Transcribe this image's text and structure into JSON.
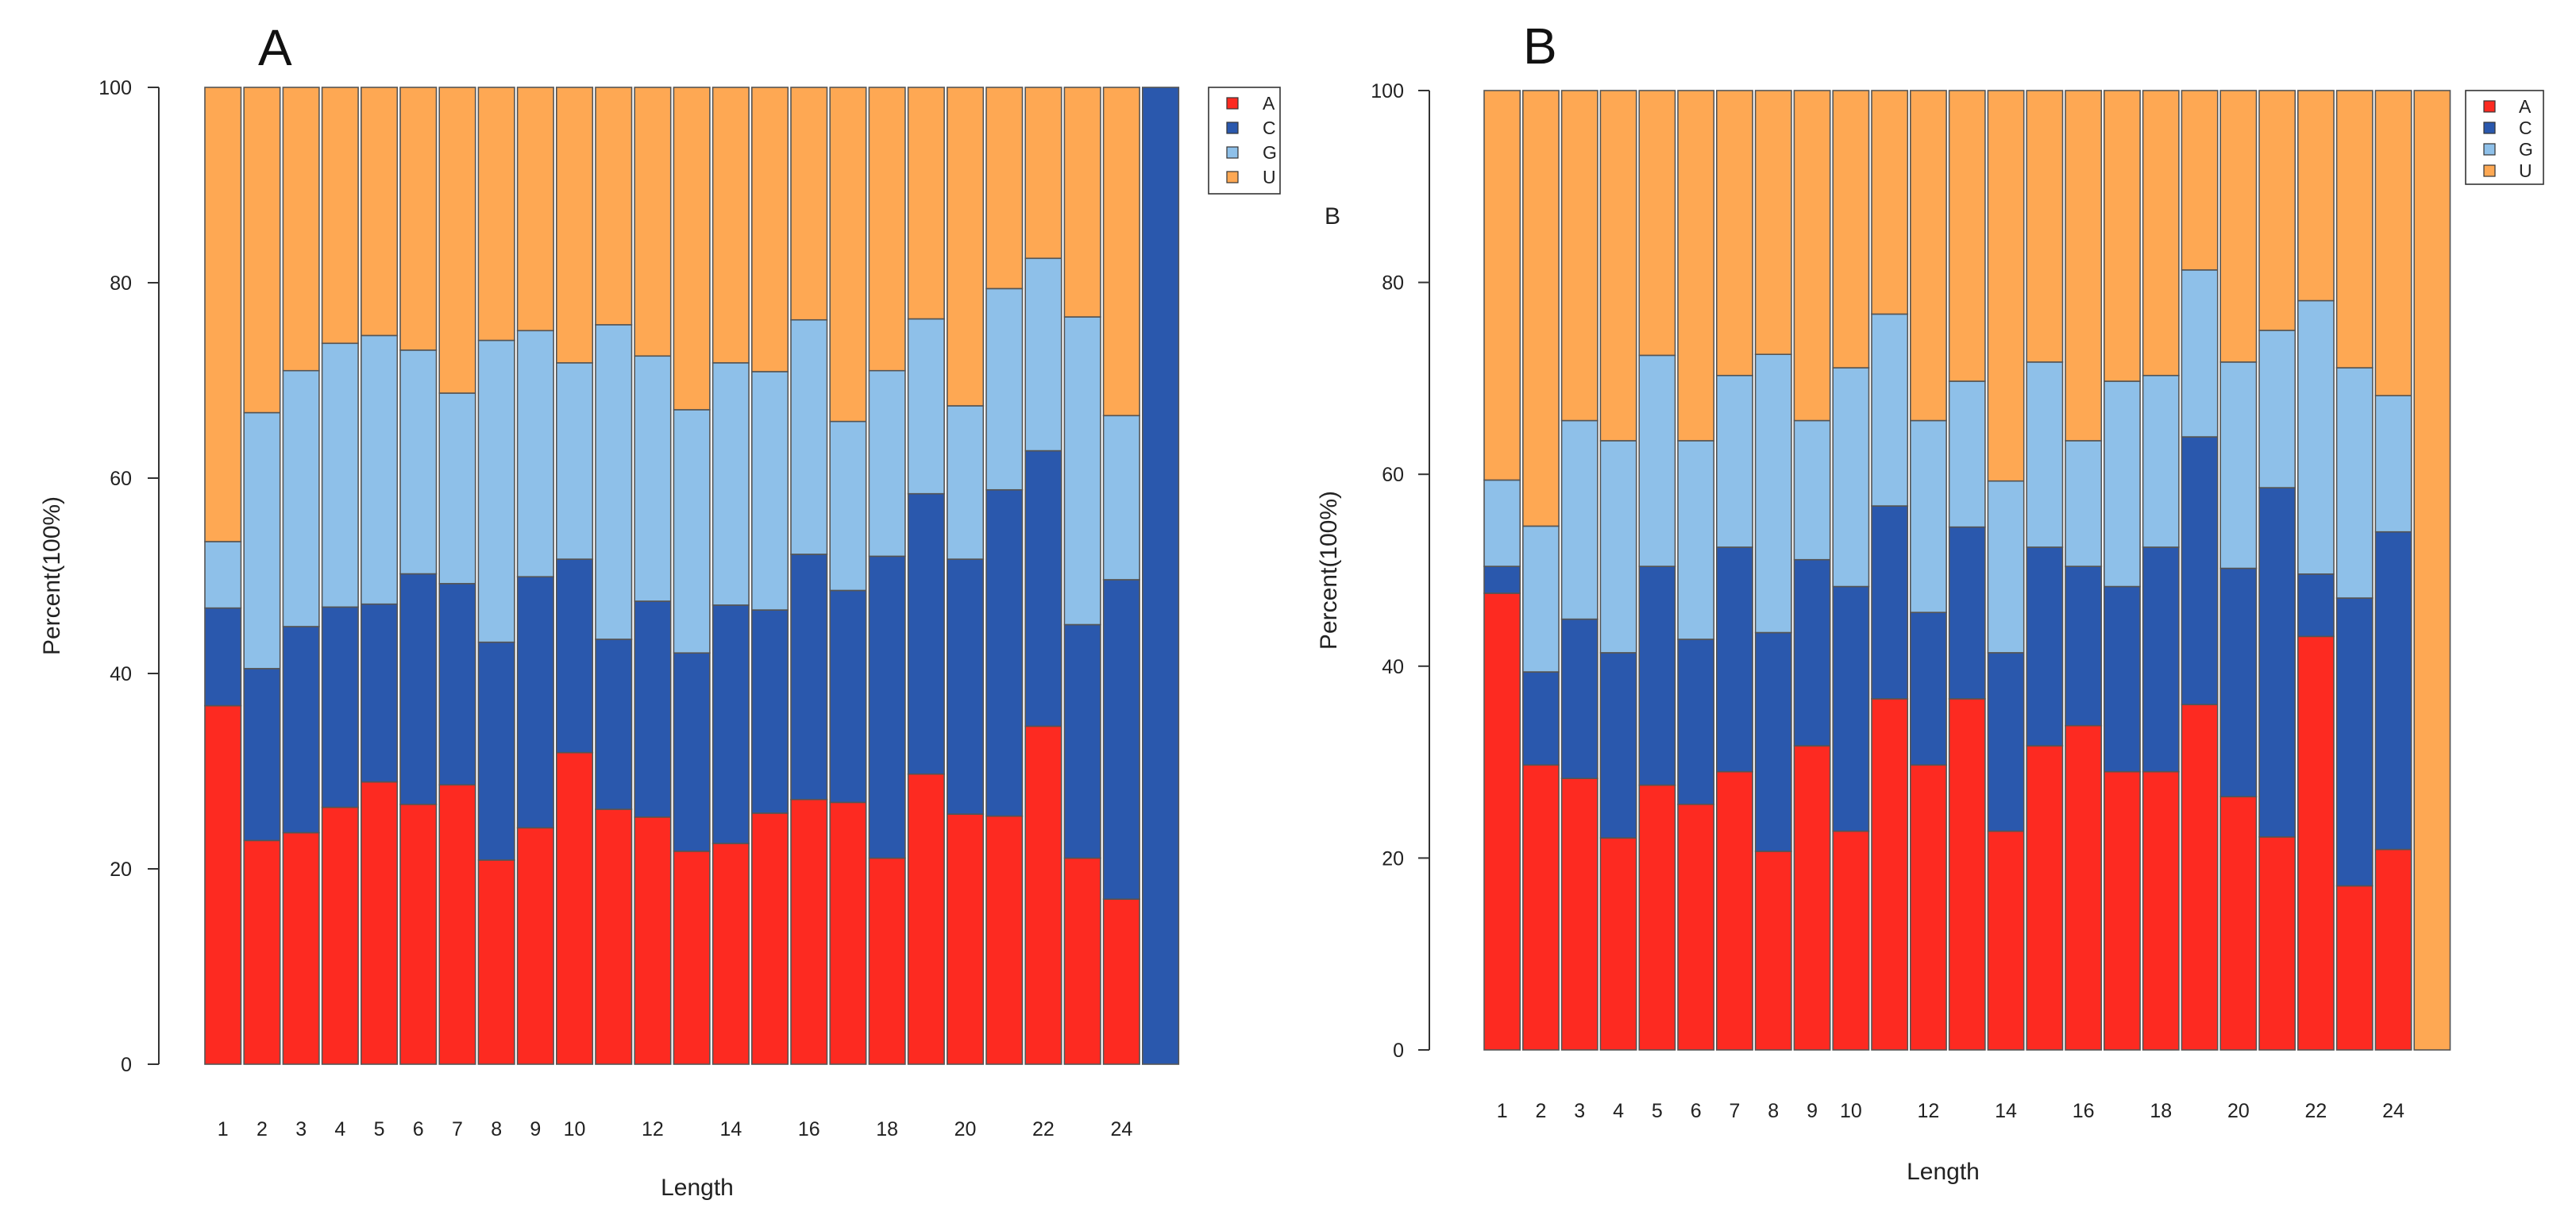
{
  "figure": {
    "stray_label": "B",
    "colors": {
      "A": "#fd2a21",
      "C": "#2a58ad",
      "G": "#8ec0e9",
      "U": "#fea853",
      "stroke": "#555555"
    }
  },
  "chart_data": [
    {
      "type": "bar",
      "stacked": true,
      "panel_label": "A",
      "xlabel": "Length",
      "ylabel": "Percent(100%)",
      "ylim": [
        0,
        100
      ],
      "yticks": [
        "0",
        "20",
        "40",
        "60",
        "80",
        "100"
      ],
      "categories": [
        "1",
        "2",
        "3",
        "4",
        "5",
        "6",
        "7",
        "8",
        "9",
        "10",
        "11",
        "12",
        "13",
        "14",
        "15",
        "16",
        "17",
        "18",
        "19",
        "20",
        "21",
        "22",
        "23",
        "24",
        "25"
      ],
      "xtick_labels": [
        "1",
        "2",
        "3",
        "4",
        "5",
        "6",
        "7",
        "8",
        "9",
        "10",
        "",
        "12",
        "",
        "14",
        "",
        "16",
        "",
        "18",
        "",
        "20",
        "",
        "22",
        "",
        "24",
        ""
      ],
      "legend": [
        "A",
        "C",
        "G",
        "U"
      ],
      "series": [
        {
          "name": "A",
          "values": [
            36.7,
            22.9,
            23.7,
            26.3,
            28.9,
            26.6,
            28.6,
            20.9,
            24.2,
            31.9,
            26.1,
            25.3,
            21.8,
            22.6,
            25.7,
            27.1,
            26.8,
            21.1,
            29.7,
            25.6,
            25.4,
            34.6,
            21.1,
            16.9,
            0
          ]
        },
        {
          "name": "C",
          "values": [
            10.0,
            17.6,
            21.1,
            20.5,
            18.2,
            23.6,
            20.6,
            22.3,
            25.7,
            19.8,
            17.4,
            22.1,
            20.3,
            24.4,
            20.8,
            25.1,
            21.7,
            30.9,
            28.7,
            26.1,
            33.4,
            28.2,
            23.9,
            32.7,
            100
          ]
        },
        {
          "name": "G",
          "values": [
            6.8,
            26.2,
            26.2,
            27.0,
            27.5,
            22.9,
            19.5,
            30.9,
            25.2,
            20.1,
            32.2,
            25.1,
            24.9,
            24.8,
            24.4,
            24.0,
            17.3,
            19.0,
            17.9,
            15.7,
            20.6,
            19.7,
            31.5,
            16.8,
            0
          ]
        },
        {
          "name": "U",
          "values": [
            46.5,
            33.3,
            29.0,
            26.2,
            25.4,
            26.9,
            31.3,
            25.9,
            24.9,
            28.2,
            24.3,
            27.5,
            33.0,
            28.2,
            29.1,
            23.8,
            34.2,
            29.0,
            23.7,
            32.6,
            20.6,
            17.5,
            23.5,
            33.6,
            0
          ]
        }
      ]
    },
    {
      "type": "bar",
      "stacked": true,
      "panel_label": "B",
      "xlabel": "Length",
      "ylabel": "Percent(100%)",
      "ylim": [
        0,
        100
      ],
      "yticks": [
        "0",
        "20",
        "40",
        "60",
        "80",
        "100"
      ],
      "categories": [
        "1",
        "2",
        "3",
        "4",
        "5",
        "6",
        "7",
        "8",
        "9",
        "10",
        "11",
        "12",
        "13",
        "14",
        "15",
        "16",
        "17",
        "18",
        "19",
        "20",
        "21",
        "22",
        "23",
        "24",
        "25"
      ],
      "xtick_labels": [
        "1",
        "2",
        "3",
        "4",
        "5",
        "6",
        "7",
        "8",
        "9",
        "10",
        "",
        "12",
        "",
        "14",
        "",
        "16",
        "",
        "18",
        "",
        "20",
        "",
        "22",
        "",
        "24",
        ""
      ],
      "legend": [
        "A",
        "C",
        "G",
        "U"
      ],
      "series": [
        {
          "name": "A",
          "values": [
            47.6,
            29.7,
            28.3,
            22.1,
            27.6,
            25.6,
            29.0,
            20.7,
            31.7,
            22.8,
            36.6,
            29.7,
            36.6,
            22.8,
            31.7,
            33.8,
            29.0,
            29.0,
            36.0,
            26.4,
            22.2,
            43.1,
            17.1,
            20.9,
            0
          ]
        },
        {
          "name": "C",
          "values": [
            2.8,
            9.7,
            16.6,
            19.3,
            22.8,
            17.2,
            23.4,
            22.8,
            19.4,
            25.5,
            20.1,
            15.9,
            17.9,
            18.6,
            20.7,
            16.6,
            19.3,
            23.4,
            27.9,
            23.8,
            36.4,
            6.5,
            30.0,
            33.1,
            0
          ]
        },
        {
          "name": "G",
          "values": [
            9.0,
            15.2,
            20.7,
            22.1,
            22.0,
            20.7,
            17.9,
            29.0,
            14.5,
            22.8,
            20.0,
            20.0,
            15.2,
            17.9,
            19.3,
            13.1,
            21.4,
            17.9,
            17.4,
            21.5,
            16.4,
            28.5,
            24.0,
            14.2,
            0
          ]
        },
        {
          "name": "U",
          "values": [
            40.6,
            45.4,
            34.4,
            36.5,
            27.6,
            36.5,
            29.7,
            27.5,
            34.4,
            28.9,
            23.3,
            34.4,
            30.3,
            40.7,
            28.3,
            36.5,
            30.3,
            29.7,
            18.7,
            28.3,
            25.0,
            21.9,
            28.9,
            31.8,
            100
          ]
        }
      ]
    }
  ]
}
